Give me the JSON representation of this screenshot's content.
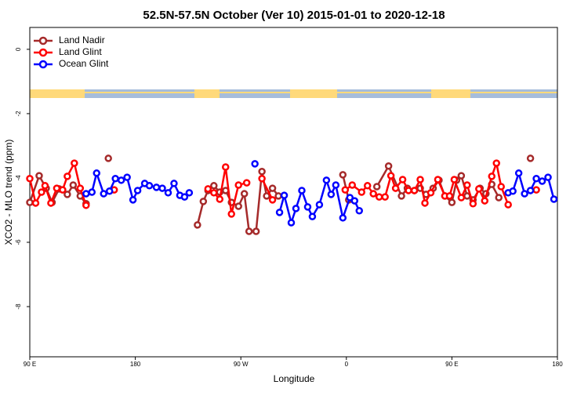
{
  "chart_data": {
    "type": "line",
    "title": "52.5N-57.5N October (Ver 10)   2015-01-01 to 2020-12-18",
    "x_label": "Longitude",
    "y_label": "XCO2 - MLO trend (ppm)",
    "xlim": [
      90,
      540
    ],
    "xticks": [
      {
        "value": 90,
        "label": "90 E"
      },
      180,
      {
        "value": 270,
        "label": "90 W"
      },
      {
        "value": 360,
        "label": "0"
      },
      {
        "value": 450,
        "label": "90 E"
      },
      {
        "value": 540,
        "label": "180"
      }
    ],
    "ylim": [
      -9.56,
      0.68
    ],
    "yticks": [
      0,
      -2,
      -4,
      -6,
      -8
    ],
    "legend": "top-left",
    "series": [
      {
        "name": "Land Nadir",
        "color": "#a52a2a",
        "x": [
          90,
          98,
          104,
          109,
          115,
          122,
          127,
          133,
          138,
          null,
          157,
          null,
          233,
          238,
          242,
          247,
          252,
          257,
          262,
          268,
          273,
          277,
          283,
          288,
          292,
          297,
          302,
          null,
          357,
          362,
          null,
          386,
          396,
          407,
          412,
          418,
          423,
          428,
          434,
          439,
          444,
          450,
          454,
          458,
          463,
          468,
          474,
          479,
          484,
          490,
          null,
          517
        ],
        "values": [
          -4.76,
          -3.93,
          -4.32,
          -4.76,
          -4.34,
          -4.51,
          -4.22,
          -4.56,
          -4.8,
          null,
          -3.39,
          null,
          -5.46,
          -4.73,
          -4.39,
          -4.24,
          -4.44,
          -4.39,
          -4.76,
          -4.88,
          -4.49,
          -5.66,
          -5.66,
          -3.8,
          -4.56,
          -4.32,
          -4.56,
          null,
          -3.9,
          -4.68,
          null,
          -4.27,
          -3.63,
          -4.56,
          -4.32,
          -4.39,
          -4.32,
          -4.51,
          -4.32,
          -4.07,
          -4.56,
          -4.76,
          -4.07,
          -3.93,
          -4.56,
          -4.68,
          -4.32,
          -4.49,
          -4.2,
          -4.61,
          null,
          -3.39
        ]
      },
      {
        "name": "Land Glint",
        "color": "#ff0000",
        "x": [
          90,
          95,
          100,
          103,
          108,
          113,
          118,
          122,
          128,
          133,
          138,
          null,
          162,
          null,
          242,
          247,
          252,
          257,
          262,
          268,
          275,
          null,
          288,
          297,
          null,
          359,
          365,
          373,
          378,
          383,
          388,
          393,
          398,
          402,
          408,
          413,
          418,
          423,
          427,
          432,
          438,
          444,
          448,
          452,
          458,
          463,
          468,
          473,
          478,
          484,
          488,
          492,
          498,
          null,
          522
        ],
        "values": [
          -4.02,
          -4.78,
          -4.44,
          -4.24,
          -4.78,
          -4.32,
          -4.37,
          -3.95,
          -3.54,
          -4.32,
          -4.85,
          null,
          -4.37,
          null,
          -4.34,
          -4.46,
          -4.66,
          -3.66,
          -5.12,
          -4.22,
          -4.15,
          null,
          -4.02,
          -4.68,
          null,
          -4.37,
          -4.22,
          -4.44,
          -4.24,
          -4.49,
          -4.59,
          -4.59,
          -3.93,
          -4.32,
          -4.05,
          -4.39,
          -4.39,
          -4.05,
          -4.78,
          -4.46,
          -4.05,
          -4.56,
          -4.56,
          -4.05,
          -4.61,
          -4.22,
          -4.8,
          -4.34,
          -4.71,
          -3.95,
          -3.54,
          -4.27,
          -4.83,
          null,
          -4.37
        ]
      },
      {
        "name": "Ocean Glint",
        "color": "#0000ff",
        "x": [
          138,
          143,
          147,
          153,
          158,
          163,
          168,
          173,
          178,
          182,
          188,
          192,
          198,
          203,
          208,
          213,
          218,
          222,
          226,
          null,
          282,
          null,
          303,
          307,
          313,
          317,
          322,
          327,
          331,
          337,
          343,
          347,
          351,
          357,
          363,
          367,
          371,
          null,
          498,
          502,
          507,
          512,
          517,
          522,
          527,
          532,
          537
        ],
        "values": [
          -4.49,
          -4.44,
          -3.85,
          -4.49,
          -4.41,
          -4.02,
          -4.07,
          -3.98,
          -4.68,
          -4.39,
          -4.17,
          -4.24,
          -4.29,
          -4.32,
          -4.46,
          -4.17,
          -4.54,
          -4.59,
          -4.46,
          null,
          -3.56,
          null,
          -5.07,
          -4.54,
          -5.39,
          -4.95,
          -4.39,
          -4.9,
          -5.2,
          -4.83,
          -4.07,
          -4.51,
          -4.22,
          -5.24,
          -4.61,
          -4.71,
          -5.02,
          null,
          -4.46,
          -4.41,
          -3.85,
          -4.49,
          -4.39,
          -4.02,
          -4.1,
          -3.98,
          -4.66
        ]
      }
    ]
  }
}
